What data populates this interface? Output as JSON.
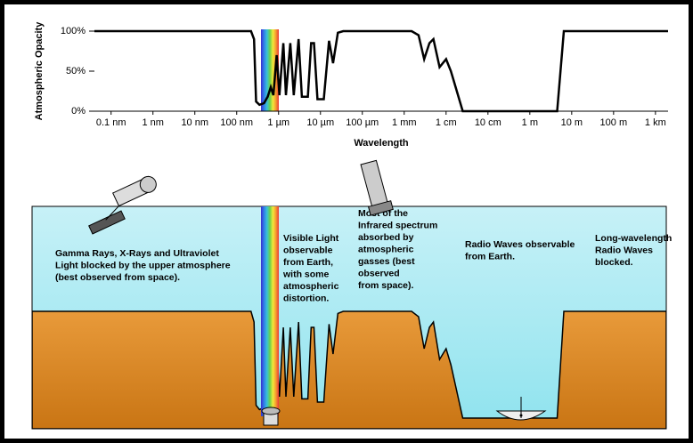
{
  "chart_data": {
    "type": "line",
    "ylabel": "Atmospheric Opacity",
    "xlabel": "Wavelength",
    "log_x": true,
    "color": "#000000",
    "xlim": [
      4e-11,
      2000
    ],
    "ylim": [
      0,
      100
    ],
    "xticks": [
      {
        "value": 1e-10,
        "label": "0.1 nm"
      },
      {
        "value": 1e-09,
        "label": "1 nm"
      },
      {
        "value": 1e-08,
        "label": "10 nm"
      },
      {
        "value": 1e-07,
        "label": "100 nm"
      },
      {
        "value": 1e-06,
        "label": "1 µm"
      },
      {
        "value": 1e-05,
        "label": "10 µm"
      },
      {
        "value": 0.0001,
        "label": "100 µm"
      },
      {
        "value": 0.001,
        "label": "1 mm"
      },
      {
        "value": 0.01,
        "label": "1 cm"
      },
      {
        "value": 0.1,
        "label": "10 cm"
      },
      {
        "value": 1,
        "label": "1 m"
      },
      {
        "value": 10,
        "label": "10 m"
      },
      {
        "value": 100,
        "label": "100 m"
      },
      {
        "value": 1000,
        "label": "1 km"
      }
    ],
    "yticks": [
      {
        "value": 100,
        "label": "100%"
      },
      {
        "value": 50,
        "label": "50%"
      },
      {
        "value": 0,
        "label": "0%"
      }
    ],
    "x": [
      4e-11,
      2.2e-07,
      2.6e-07,
      2.9e-07,
      3.5e-07,
      4.5e-07,
      5.5e-07,
      6.5e-07,
      7.5e-07,
      9e-07,
      1.05e-06,
      1.3e-06,
      1.5e-06,
      1.9e-06,
      2.3e-06,
      3e-06,
      3.6e-06,
      5e-06,
      6e-06,
      7e-06,
      8.5e-06,
      1.2e-05,
      1.6e-05,
      2e-05,
      2.6e-05,
      3.5e-05,
      0.0015,
      0.0022,
      0.003,
      0.004,
      0.005,
      0.007,
      0.01,
      0.013,
      0.025,
      4.5,
      6.5,
      2000
    ],
    "values": [
      100,
      100,
      90,
      12,
      8,
      10,
      18,
      30,
      20,
      70,
      20,
      85,
      20,
      85,
      20,
      90,
      18,
      18,
      85,
      85,
      15,
      15,
      88,
      60,
      98,
      100,
      100,
      95,
      65,
      85,
      90,
      55,
      65,
      50,
      0,
      0,
      100,
      100
    ],
    "annotations": [
      {
        "lines": [
          "Gamma Rays, X-Rays and Ultraviolet",
          "Light blocked by the upper atmosphere",
          "(best observed from space)."
        ]
      },
      {
        "lines": [
          "Visible Light",
          "observable",
          "from Earth,",
          "with some",
          "atmospheric",
          "distortion."
        ]
      },
      {
        "lines": [
          "Most of the",
          "Infrared spectrum",
          "absorbed by",
          "atmospheric",
          "gasses (best",
          "observed",
          "from space)."
        ]
      },
      {
        "lines": [
          "Radio Waves observable",
          "from Earth."
        ]
      },
      {
        "lines": [
          "Long-wavelength",
          "Radio Waves",
          "blocked."
        ]
      }
    ]
  }
}
